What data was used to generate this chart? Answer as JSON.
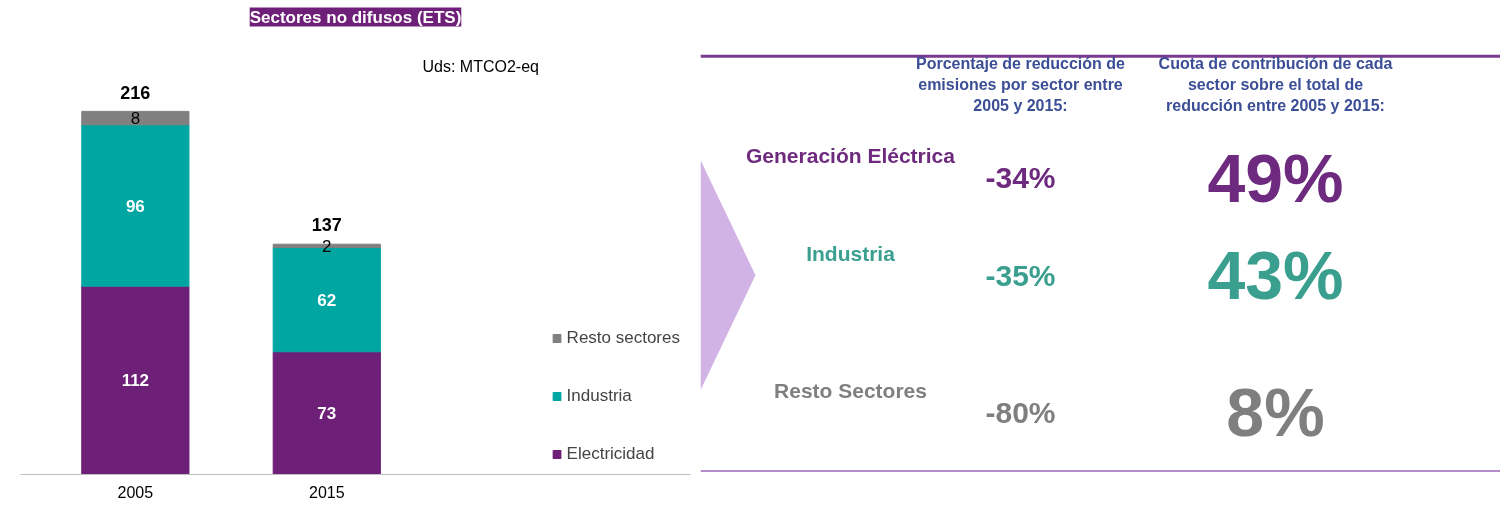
{
  "chart_data": [
    {
      "type": "bar",
      "title": "Sectores no difusos (ETS)",
      "categories": [
        "2005",
        "2015"
      ],
      "stacked": true,
      "data_labels": true,
      "legend": "right",
      "totals": [
        "216",
        "137"
      ],
      "annotations": [
        "Uds: MTCO2-eq"
      ],
      "series": [
        {
          "name": "Electricidad",
          "color": "#6e1f78",
          "values": [
            112,
            73
          ]
        },
        {
          "name": "Industria",
          "color": "#00a6a2",
          "values": [
            96,
            62
          ]
        },
        {
          "name": "Resto sectores",
          "color": "#808080",
          "values": [
            8,
            2
          ]
        }
      ]
    },
    {
      "type": "other",
      "categories": [
        "Generación Eléctrica",
        "Industria",
        "Resto Sectores"
      ],
      "colors": [
        "#6e2a7e",
        "#3a9f8f",
        "#7f7f7f"
      ],
      "series": [
        {
          "name": "Porcentaje de reducción de emisiones por sector entre 2005 y 2015:",
          "values": [
            -34,
            -35,
            -80
          ],
          "value_labels": [
            "-34%",
            "-35%",
            "-80%"
          ]
        },
        {
          "name": "Cuota de contribución de cada sector sobre el total de reducción entre 2005 y 2015:",
          "values": [
            49,
            43,
            8
          ],
          "value_labels": [
            "49%",
            "43%",
            "8%"
          ]
        }
      ]
    }
  ]
}
